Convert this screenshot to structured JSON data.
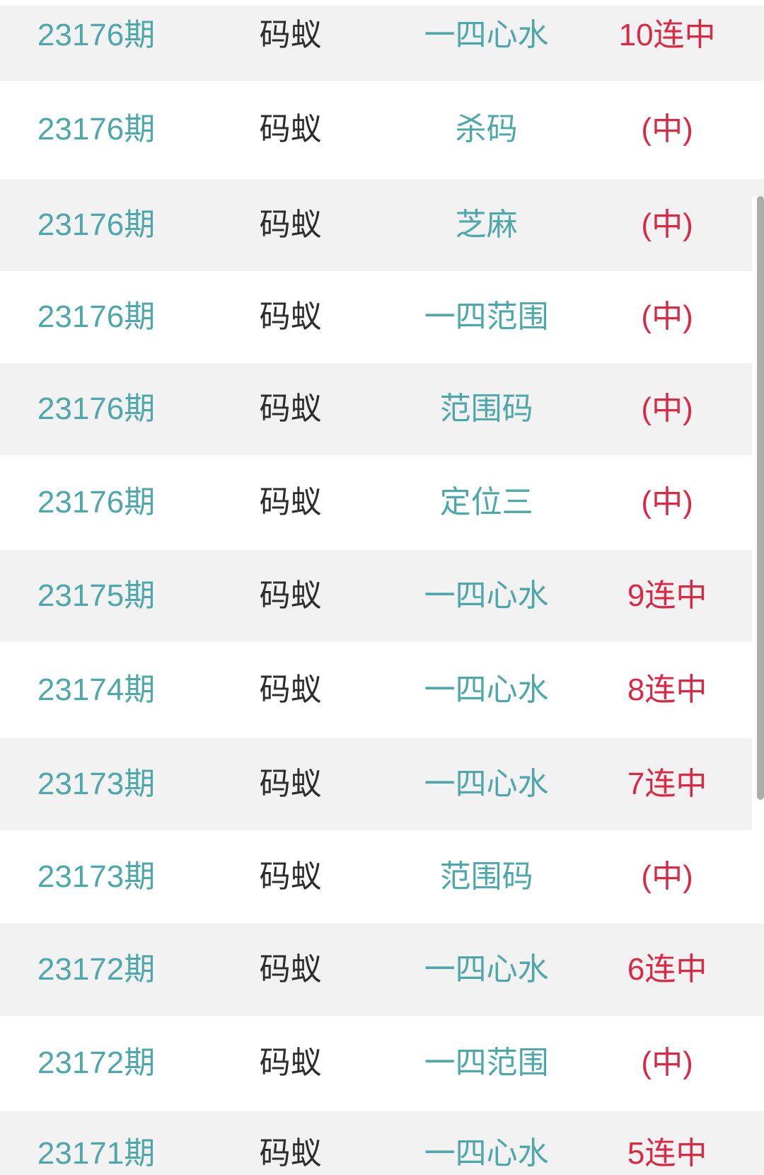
{
  "colors": {
    "accent_teal": "#4EA7AA",
    "accent_red": "#D92945",
    "text_dark": "#2D2D2D",
    "row_alt_background": "#F3F2F2",
    "row_background": "#FFFFFF",
    "scrollbar_thumb": "#AEADAD"
  },
  "table": {
    "rows": [
      {
        "period": "23176期",
        "source": "码蚁",
        "category": "一四心水",
        "result": "10连中"
      },
      {
        "period": "23176期",
        "source": "码蚁",
        "category": "杀码",
        "result": "(中)"
      },
      {
        "period": "23176期",
        "source": "码蚁",
        "category": "芝麻",
        "result": "(中)"
      },
      {
        "period": "23176期",
        "source": "码蚁",
        "category": "一四范围",
        "result": "(中)"
      },
      {
        "period": "23176期",
        "source": "码蚁",
        "category": "范围码",
        "result": "(中)"
      },
      {
        "period": "23176期",
        "source": "码蚁",
        "category": "定位三",
        "result": "(中)"
      },
      {
        "period": "23175期",
        "source": "码蚁",
        "category": "一四心水",
        "result": "9连中"
      },
      {
        "period": "23174期",
        "source": "码蚁",
        "category": "一四心水",
        "result": "8连中"
      },
      {
        "period": "23173期",
        "source": "码蚁",
        "category": "一四心水",
        "result": "7连中"
      },
      {
        "period": "23173期",
        "source": "码蚁",
        "category": "范围码",
        "result": "(中)"
      },
      {
        "period": "23172期",
        "source": "码蚁",
        "category": "一四心水",
        "result": "6连中"
      },
      {
        "period": "23172期",
        "source": "码蚁",
        "category": "一四范围",
        "result": "(中)"
      },
      {
        "period": "23171期",
        "source": "码蚁",
        "category": "一四心水",
        "result": "5连中"
      }
    ]
  }
}
